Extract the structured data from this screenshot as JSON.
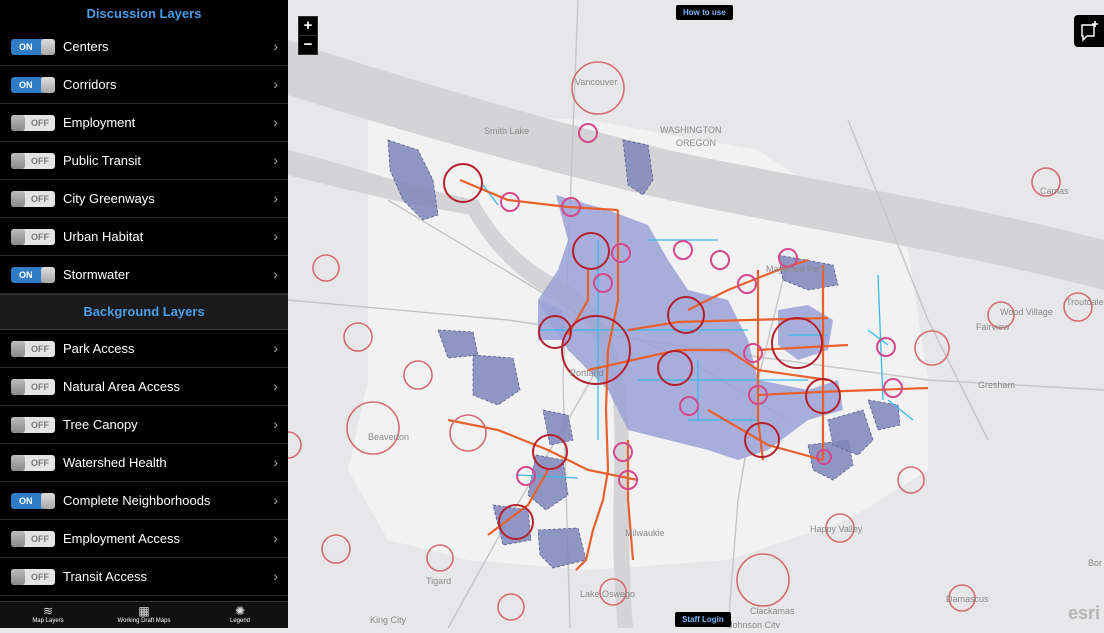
{
  "sidebar": {
    "discussion_header": "Discussion Layers",
    "discussion_layers": [
      {
        "label": "Centers",
        "state": "on"
      },
      {
        "label": "Corridors",
        "state": "on"
      },
      {
        "label": "Employment",
        "state": "off"
      },
      {
        "label": "Public Transit",
        "state": "off"
      },
      {
        "label": "City Greenways",
        "state": "off"
      },
      {
        "label": "Urban Habitat",
        "state": "off"
      },
      {
        "label": "Stormwater",
        "state": "on"
      }
    ],
    "background_header": "Background Layers",
    "background_layers": [
      {
        "label": "Park Access",
        "state": "off"
      },
      {
        "label": "Natural Area Access",
        "state": "off"
      },
      {
        "label": "Tree Canopy",
        "state": "off"
      },
      {
        "label": "Watershed Health",
        "state": "off"
      },
      {
        "label": "Complete Neighborhoods",
        "state": "on"
      },
      {
        "label": "Employment Access",
        "state": "off"
      },
      {
        "label": "Transit Access",
        "state": "off"
      }
    ],
    "toggle_on": "ON",
    "toggle_off": "OFF"
  },
  "tabs": [
    {
      "label": "Map Layers",
      "icon": "layers-icon"
    },
    {
      "label": "Working Draft Maps",
      "icon": "map-icon"
    },
    {
      "label": "Legend",
      "icon": "legend-icon"
    }
  ],
  "map": {
    "zoom_in": "+",
    "zoom_out": "−",
    "how_to_use": "How to use",
    "staff_login": "Staff Login",
    "attribution": "esri",
    "place_labels": [
      "Vancouver",
      "Portland",
      "Beaverton",
      "Gresham",
      "Happy Valley",
      "Milwaukie",
      "Tigard",
      "Lake Oswego",
      "Clackamas",
      "Damascus",
      "Camas",
      "Fairview",
      "Wood Village",
      "Troutdale",
      "Maywood Park",
      "Smith Lake",
      "WASHINGTON",
      "OREGON",
      "King City",
      "Johnson City",
      "Bor"
    ]
  },
  "colors": {
    "sidebar_bg": "#000000",
    "header_text": "#4a9ee8",
    "toggle_on": "#2f7bc4",
    "corridor": "#e8602c",
    "regional_center": "#b5202e",
    "town_center": "#d4488c",
    "stormwater_fill": "#9ba2d6",
    "greenway": "#3bb8e8"
  }
}
